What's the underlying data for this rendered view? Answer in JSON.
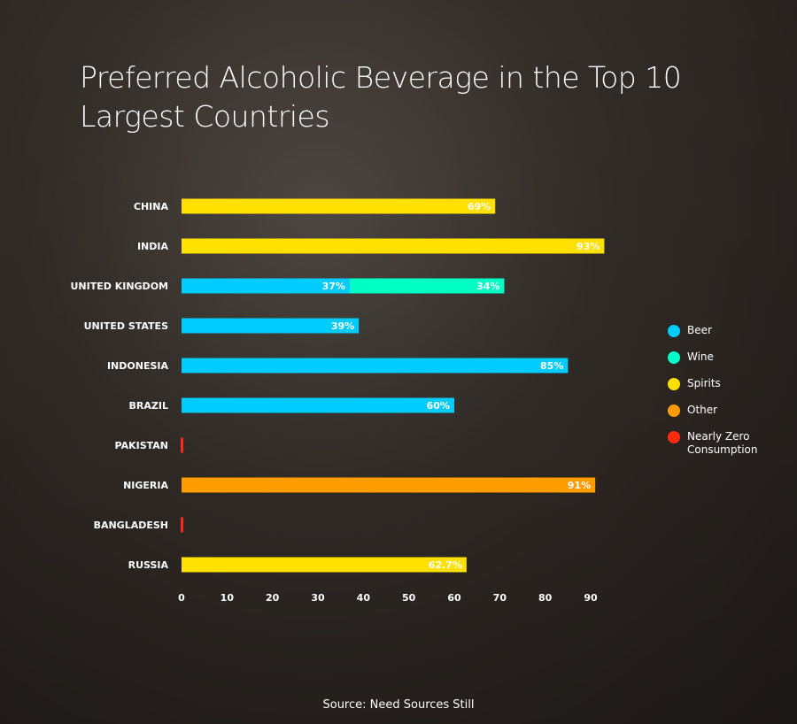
{
  "title": "Preferred Alcoholic Beverage in the Top 10 Largest Countries",
  "source": "Source: Need Sources Still",
  "colors": {
    "Beer": "#00ccff",
    "Wine": "#00ffc4",
    "Spirits": "#ffe000",
    "Other": "#ff9c00",
    "Nearly Zero Consumption": "#ff2a10"
  },
  "legend": [
    {
      "label": "Beer",
      "color": "#00ccff"
    },
    {
      "label": "Wine",
      "color": "#00ffc4"
    },
    {
      "label": "Spirits",
      "color": "#ffe000"
    },
    {
      "label": "Other",
      "color": "#ff9c00"
    },
    {
      "label": "Nearly Zero Consumption",
      "color": "#ff2a10"
    }
  ],
  "chart_data": {
    "type": "bar",
    "orientation": "horizontal",
    "stacked": true,
    "title": "Preferred Alcoholic Beverage in the Top 10 Largest Countries",
    "xlim": [
      0,
      90
    ],
    "x_ticks": [
      0,
      10,
      20,
      30,
      40,
      50,
      60,
      70,
      80,
      90
    ],
    "grid": false,
    "legend_position": "right",
    "categories": [
      "CHINA",
      "INDIA",
      "UNITED KINGDOM",
      "UNITED STATES",
      "INDONESIA",
      "BRAZIL",
      "PAKISTAN",
      "NIGERIA",
      "BANGLADESH",
      "RUSSIA"
    ],
    "rows": [
      {
        "country": "CHINA",
        "segments": [
          {
            "type": "Spirits",
            "value": 69,
            "label": "69%"
          }
        ]
      },
      {
        "country": "INDIA",
        "segments": [
          {
            "type": "Spirits",
            "value": 93,
            "label": "93%"
          }
        ]
      },
      {
        "country": "UNITED KINGDOM",
        "segments": [
          {
            "type": "Beer",
            "value": 37,
            "label": "37%"
          },
          {
            "type": "Wine",
            "value": 34,
            "label": "34%"
          }
        ]
      },
      {
        "country": "UNITED STATES",
        "segments": [
          {
            "type": "Beer",
            "value": 39,
            "label": "39%"
          }
        ]
      },
      {
        "country": "INDONESIA",
        "segments": [
          {
            "type": "Beer",
            "value": 85,
            "label": "85%"
          }
        ]
      },
      {
        "country": "BRAZIL",
        "segments": [
          {
            "type": "Beer",
            "value": 60,
            "label": "60%"
          }
        ]
      },
      {
        "country": "PAKISTAN",
        "segments": [
          {
            "type": "Nearly Zero Consumption",
            "value": 0,
            "label": ""
          }
        ]
      },
      {
        "country": "NIGERIA",
        "segments": [
          {
            "type": "Other",
            "value": 91,
            "label": "91%"
          }
        ]
      },
      {
        "country": "BANGLADESH",
        "segments": [
          {
            "type": "Nearly Zero Consumption",
            "value": 0,
            "label": ""
          }
        ]
      },
      {
        "country": "RUSSIA",
        "segments": [
          {
            "type": "Spirits",
            "value": 62.7,
            "label": "62.7%"
          }
        ]
      }
    ]
  }
}
